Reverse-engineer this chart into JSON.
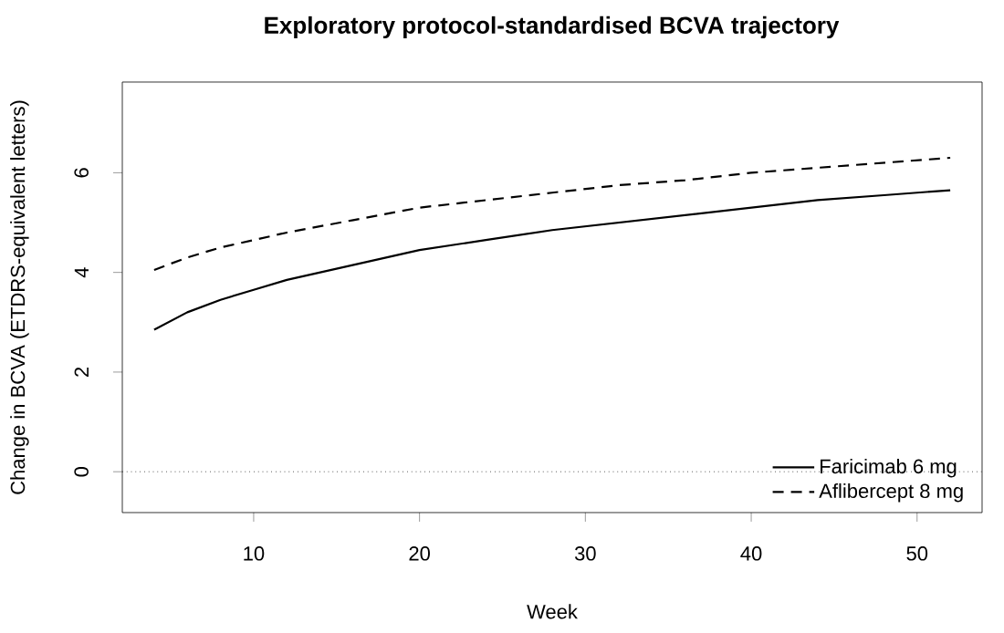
{
  "chart_data": {
    "type": "line",
    "title": "Exploratory protocol-standardised BCVA trajectory",
    "xlabel": "Week",
    "ylabel": "Change in BCVA (ETDRS-equivalent letters)",
    "x": [
      4,
      6,
      8,
      10,
      12,
      16,
      20,
      24,
      28,
      32,
      36,
      40,
      44,
      48,
      52
    ],
    "series": [
      {
        "name": "Faricimab 6 mg",
        "color": "#000000",
        "line_style": "solid",
        "values": [
          2.85,
          3.2,
          3.45,
          3.65,
          3.85,
          4.15,
          4.45,
          4.65,
          4.85,
          5.0,
          5.15,
          5.3,
          5.45,
          5.55,
          5.65
        ]
      },
      {
        "name": "Aflibercept 8 mg",
        "color": "#000000",
        "line_style": "dashed",
        "values": [
          4.05,
          4.3,
          4.5,
          4.65,
          4.8,
          5.05,
          5.3,
          5.45,
          5.6,
          5.75,
          5.85,
          6.0,
          6.1,
          6.2,
          6.3
        ]
      }
    ],
    "xlim": [
      2.08,
      53.92
    ],
    "ylim": [
      -0.82,
      7.82
    ],
    "xticks": [
      10,
      20,
      30,
      40,
      50
    ],
    "yticks": [
      0,
      2,
      4,
      6
    ],
    "ref_lines": [
      {
        "axis": "y",
        "value": 0,
        "line_style": "dotted",
        "color": "#000000"
      }
    ],
    "grid": false,
    "legend": "bottom right"
  }
}
